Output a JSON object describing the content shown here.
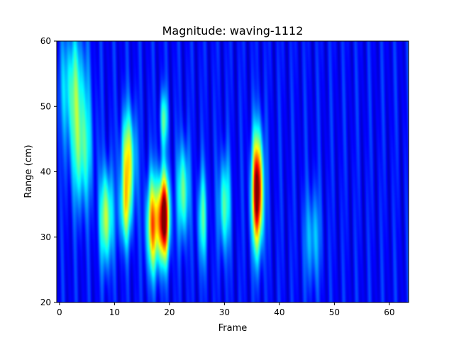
{
  "chart_data": {
    "type": "heatmap",
    "title": "Magnitude: waving-1112",
    "xlabel": "Frame",
    "ylabel": "Range (cm)",
    "xlim": [
      -0.5,
      63.5
    ],
    "ylim": [
      20,
      60
    ],
    "xticks": [
      0,
      10,
      20,
      30,
      40,
      50,
      60
    ],
    "yticks": [
      20,
      30,
      40,
      50,
      60
    ],
    "colormap": "jet",
    "value_range": [
      0,
      1
    ],
    "grid": false,
    "background_level": 0.13,
    "hotspots": [
      {
        "frame": 2.5,
        "range_cm": 53,
        "frame_spread": 1.6,
        "range_spread": 6,
        "peak": 0.3
      },
      {
        "frame": 4,
        "range_cm": 43,
        "frame_spread": 1.3,
        "range_spread": 6,
        "peak": 0.32
      },
      {
        "frame": 8.5,
        "range_cm": 33,
        "frame_spread": 0.8,
        "range_spread": 5,
        "peak": 0.45
      },
      {
        "frame": 12.5,
        "range_cm": 42,
        "frame_spread": 0.9,
        "range_spread": 5,
        "peak": 0.48
      },
      {
        "frame": 12,
        "range_cm": 34,
        "frame_spread": 0.8,
        "range_spread": 4,
        "peak": 0.34
      },
      {
        "frame": 17,
        "range_cm": 32,
        "frame_spread": 0.8,
        "range_spread": 5,
        "peak": 0.62
      },
      {
        "frame": 19,
        "range_cm": 33,
        "frame_spread": 0.7,
        "range_spread": 4.5,
        "peak": 0.95
      },
      {
        "frame": 19,
        "range_cm": 48,
        "frame_spread": 0.5,
        "range_spread": 3,
        "peak": 0.32
      },
      {
        "frame": 22.5,
        "range_cm": 37,
        "frame_spread": 0.7,
        "range_spread": 5,
        "peak": 0.38
      },
      {
        "frame": 26,
        "range_cm": 33,
        "frame_spread": 0.6,
        "range_spread": 5,
        "peak": 0.3
      },
      {
        "frame": 30,
        "range_cm": 35,
        "frame_spread": 0.7,
        "range_spread": 5,
        "peak": 0.35
      },
      {
        "frame": 36,
        "range_cm": 37,
        "frame_spread": 0.7,
        "range_spread": 6,
        "peak": 0.95
      },
      {
        "frame": 46,
        "range_cm": 30,
        "frame_spread": 1.0,
        "range_spread": 5,
        "peak": 0.2
      }
    ]
  }
}
